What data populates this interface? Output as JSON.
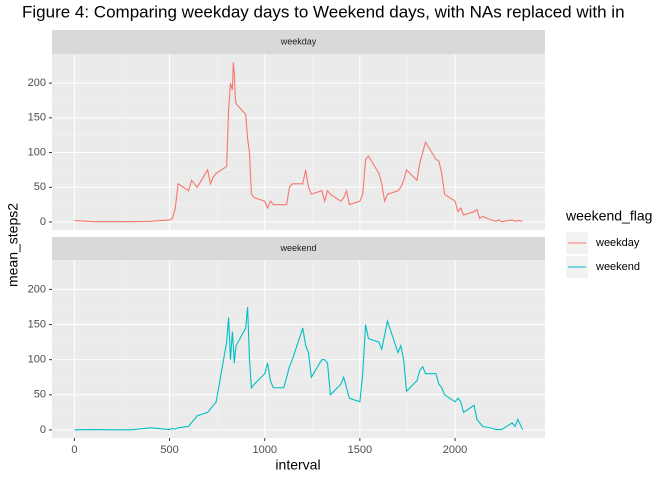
{
  "chart_data": {
    "type": "line",
    "title": "Figure 4: Comparing weekday days to Weekend days, with NAs replaced with in",
    "x_label": "interval",
    "y_label": "mean_steps2",
    "legend_title": "weekend_flag",
    "facets": [
      "weekday",
      "weekend"
    ],
    "x": [
      0,
      100,
      200,
      300,
      400,
      500,
      515,
      530,
      545,
      600,
      615,
      630,
      645,
      700,
      715,
      730,
      745,
      800,
      810,
      820,
      830,
      835,
      840,
      845,
      850,
      900,
      910,
      920,
      930,
      945,
      1000,
      1015,
      1030,
      1045,
      1100,
      1115,
      1130,
      1145,
      1200,
      1215,
      1230,
      1245,
      1300,
      1315,
      1330,
      1345,
      1400,
      1415,
      1430,
      1445,
      1500,
      1515,
      1530,
      1545,
      1600,
      1615,
      1630,
      1645,
      1700,
      1715,
      1730,
      1745,
      1800,
      1815,
      1830,
      1845,
      1900,
      1915,
      1930,
      1945,
      2000,
      2015,
      2030,
      2045,
      2100,
      2115,
      2130,
      2145,
      2200,
      2215,
      2230,
      2245,
      2300,
      2315,
      2330,
      2355
    ],
    "series": [
      {
        "name": "weekday",
        "color": "#F8766D",
        "values": [
          2,
          0.5,
          0.5,
          0.5,
          1,
          3,
          5,
          20,
          55,
          45,
          60,
          55,
          50,
          75,
          55,
          65,
          70,
          80,
          160,
          200,
          190,
          230,
          215,
          180,
          170,
          155,
          120,
          100,
          40,
          35,
          30,
          20,
          30,
          25,
          25,
          25,
          50,
          55,
          55,
          75,
          50,
          40,
          45,
          30,
          45,
          40,
          30,
          35,
          45,
          25,
          30,
          40,
          90,
          95,
          70,
          55,
          30,
          40,
          45,
          50,
          60,
          75,
          60,
          85,
          100,
          115,
          90,
          88,
          70,
          40,
          30,
          15,
          20,
          10,
          15,
          18,
          5,
          8,
          2,
          1,
          3,
          0.5,
          3,
          1,
          2,
          1
        ]
      },
      {
        "name": "weekend",
        "color": "#00BFC4",
        "values": [
          0.2,
          0.5,
          0.1,
          0.2,
          3,
          0.5,
          2,
          1,
          3,
          5,
          10,
          15,
          20,
          25,
          30,
          35,
          40,
          125,
          160,
          100,
          140,
          120,
          95,
          110,
          120,
          145,
          175,
          100,
          60,
          65,
          80,
          95,
          70,
          60,
          60,
          75,
          90,
          100,
          145,
          120,
          110,
          75,
          100,
          100,
          95,
          50,
          65,
          75,
          60,
          45,
          40,
          80,
          150,
          130,
          125,
          115,
          135,
          155,
          110,
          120,
          100,
          55,
          70,
          85,
          90,
          80,
          80,
          65,
          60,
          50,
          40,
          45,
          40,
          25,
          35,
          15,
          10,
          5,
          2,
          0.5,
          0.5,
          0.5,
          10,
          5,
          15,
          0.5
        ]
      }
    ],
    "xlim": [
      -117.75,
      2472.75
    ],
    "xticks": [
      0,
      500,
      1000,
      1500,
      2000
    ],
    "ylim": [
      -11.52,
      241.9
    ],
    "yticks": [
      0,
      50,
      100,
      150,
      200
    ],
    "grid": true
  }
}
